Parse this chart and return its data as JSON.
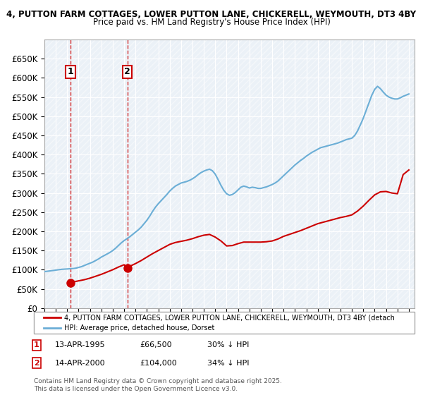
{
  "title1": "4, PUTTON FARM COTTAGES, LOWER PUTTON LANE, CHICKERELL, WEYMOUTH, DT3 4BY",
  "title2": "Price paid vs. HM Land Registry's House Price Index (HPI)",
  "ylabel": "",
  "background_color": "#ffffff",
  "plot_bg_color": "#dce6f1",
  "hatch_color": "#ffffff",
  "sale1_date_num": 1995.28,
  "sale1_price": 66500,
  "sale1_label": "1",
  "sale2_date_num": 2000.28,
  "sale2_price": 104000,
  "sale2_label": "2",
  "legend_line1": "4, PUTTON FARM COTTAGES, LOWER PUTTON LANE, CHICKERELL, WEYMOUTH, DT3 4BY (detach",
  "legend_line2": "HPI: Average price, detached house, Dorset",
  "footnote1": "1    13-APR-1995        £66,500        30% ↓ HPI",
  "footnote2": "2    14-APR-2000        £104,000      34% ↓ HPI",
  "copyright": "Contains HM Land Registry data © Crown copyright and database right 2025.\nThis data is licensed under the Open Government Licence v3.0.",
  "ylim_max": 700000,
  "yticks": [
    0,
    50000,
    100000,
    150000,
    200000,
    250000,
    300000,
    350000,
    400000,
    450000,
    500000,
    550000,
    600000,
    650000
  ],
  "xlim_min": 1993.0,
  "xlim_max": 2025.5,
  "hpi_color": "#6baed6",
  "price_color": "#cc0000",
  "sale_marker_color": "#cc0000",
  "dashed_line_color": "#cc0000",
  "hpi_data_x": [
    1993.0,
    1993.25,
    1993.5,
    1993.75,
    1994.0,
    1994.25,
    1994.5,
    1994.75,
    1995.0,
    1995.25,
    1995.5,
    1995.75,
    1996.0,
    1996.25,
    1996.5,
    1996.75,
    1997.0,
    1997.25,
    1997.5,
    1997.75,
    1998.0,
    1998.25,
    1998.5,
    1998.75,
    1999.0,
    1999.25,
    1999.5,
    1999.75,
    2000.0,
    2000.25,
    2000.5,
    2000.75,
    2001.0,
    2001.25,
    2001.5,
    2001.75,
    2002.0,
    2002.25,
    2002.5,
    2002.75,
    2003.0,
    2003.25,
    2003.5,
    2003.75,
    2004.0,
    2004.25,
    2004.5,
    2004.75,
    2005.0,
    2005.25,
    2005.5,
    2005.75,
    2006.0,
    2006.25,
    2006.5,
    2006.75,
    2007.0,
    2007.25,
    2007.5,
    2007.75,
    2008.0,
    2008.25,
    2008.5,
    2008.75,
    2009.0,
    2009.25,
    2009.5,
    2009.75,
    2010.0,
    2010.25,
    2010.5,
    2010.75,
    2011.0,
    2011.25,
    2011.5,
    2011.75,
    2012.0,
    2012.25,
    2012.5,
    2012.75,
    2013.0,
    2013.25,
    2013.5,
    2013.75,
    2014.0,
    2014.25,
    2014.5,
    2014.75,
    2015.0,
    2015.25,
    2015.5,
    2015.75,
    2016.0,
    2016.25,
    2016.5,
    2016.75,
    2017.0,
    2017.25,
    2017.5,
    2017.75,
    2018.0,
    2018.25,
    2018.5,
    2018.75,
    2019.0,
    2019.25,
    2019.5,
    2019.75,
    2020.0,
    2020.25,
    2020.5,
    2020.75,
    2021.0,
    2021.25,
    2021.5,
    2021.75,
    2022.0,
    2022.25,
    2022.5,
    2022.75,
    2023.0,
    2023.25,
    2023.5,
    2023.75,
    2024.0,
    2024.25,
    2024.5,
    2024.75,
    2025.0
  ],
  "hpi_data_y": [
    95000,
    96000,
    97000,
    98000,
    99000,
    100000,
    101000,
    101500,
    102000,
    102500,
    103000,
    104000,
    106000,
    108000,
    111000,
    114000,
    117000,
    120000,
    124000,
    128000,
    133000,
    137000,
    141000,
    145000,
    150000,
    156000,
    163000,
    170000,
    176000,
    181000,
    186000,
    192000,
    198000,
    204000,
    211000,
    220000,
    229000,
    240000,
    252000,
    263000,
    272000,
    280000,
    288000,
    296000,
    305000,
    312000,
    318000,
    322000,
    326000,
    328000,
    330000,
    333000,
    337000,
    342000,
    348000,
    353000,
    357000,
    360000,
    362000,
    358000,
    349000,
    335000,
    320000,
    307000,
    298000,
    294000,
    296000,
    301000,
    308000,
    315000,
    318000,
    316000,
    313000,
    315000,
    314000,
    312000,
    312000,
    314000,
    316000,
    319000,
    322000,
    326000,
    331000,
    338000,
    345000,
    352000,
    359000,
    366000,
    373000,
    379000,
    385000,
    390000,
    396000,
    401000,
    406000,
    410000,
    414000,
    418000,
    420000,
    422000,
    424000,
    426000,
    428000,
    430000,
    433000,
    436000,
    439000,
    441000,
    443000,
    450000,
    462000,
    478000,
    495000,
    515000,
    535000,
    555000,
    570000,
    578000,
    572000,
    563000,
    555000,
    550000,
    547000,
    545000,
    545000,
    548000,
    552000,
    555000,
    558000
  ],
  "price_data_x": [
    1995.28,
    1995.5,
    1996.0,
    1996.5,
    1997.0,
    1997.5,
    1998.0,
    1998.5,
    1999.0,
    1999.5,
    2000.0,
    2000.28,
    2000.5,
    2001.0,
    2001.5,
    2002.0,
    2002.5,
    2003.0,
    2003.5,
    2004.0,
    2004.5,
    2005.0,
    2005.5,
    2006.0,
    2006.5,
    2007.0,
    2007.5,
    2008.0,
    2008.5,
    2009.0,
    2009.5,
    2010.0,
    2010.5,
    2011.0,
    2011.5,
    2012.0,
    2012.5,
    2013.0,
    2013.5,
    2014.0,
    2014.5,
    2015.0,
    2015.5,
    2016.0,
    2016.5,
    2017.0,
    2017.5,
    2018.0,
    2018.5,
    2019.0,
    2019.5,
    2020.0,
    2020.5,
    2021.0,
    2021.5,
    2022.0,
    2022.5,
    2023.0,
    2023.5,
    2024.0,
    2024.5,
    2025.0
  ],
  "price_data_y": [
    66500,
    68000,
    71000,
    74000,
    78000,
    83000,
    88000,
    94000,
    100000,
    107000,
    113000,
    104000,
    109000,
    116000,
    124000,
    133000,
    142000,
    150000,
    158000,
    166000,
    171000,
    174000,
    177000,
    181000,
    186000,
    190000,
    192000,
    185000,
    175000,
    162000,
    163000,
    168000,
    172000,
    172000,
    172000,
    172000,
    173000,
    175000,
    180000,
    187000,
    192000,
    197000,
    202000,
    208000,
    214000,
    220000,
    224000,
    228000,
    232000,
    236000,
    239000,
    243000,
    253000,
    266000,
    281000,
    295000,
    303000,
    304000,
    300000,
    298000,
    348000,
    360000
  ]
}
